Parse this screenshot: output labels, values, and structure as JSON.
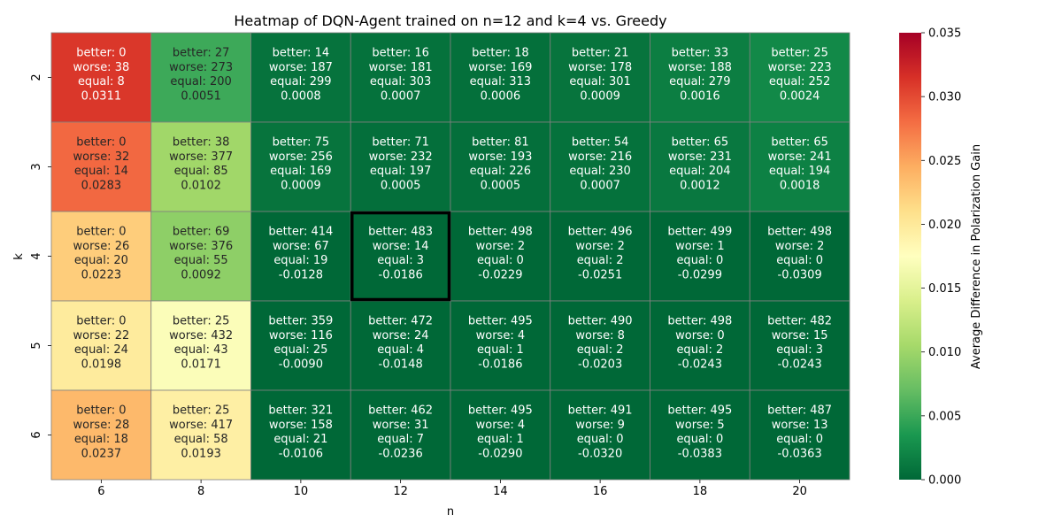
{
  "chart_data": {
    "type": "heatmap",
    "title": "Heatmap of DQN-Agent trained on n=12 and k=4 vs. Greedy",
    "xlabel": "n",
    "ylabel": "k",
    "x": [
      "6",
      "8",
      "10",
      "12",
      "14",
      "16",
      "18",
      "20"
    ],
    "y": [
      "2",
      "3",
      "4",
      "5",
      "6"
    ],
    "highlighted_cell": {
      "n": "12",
      "k": "4"
    },
    "colorbar": {
      "label": "Average Difference in Polarization Gain",
      "range": [
        0.0,
        0.035
      ],
      "ticks": [
        "0.000",
        "0.005",
        "0.010",
        "0.015",
        "0.020",
        "0.025",
        "0.030",
        "0.035"
      ],
      "colormap": "RdYlGn_r"
    },
    "cells": [
      [
        {
          "better": 0,
          "worse": 38,
          "equal": 8,
          "value": "0.0311"
        },
        {
          "better": 27,
          "worse": 273,
          "equal": 200,
          "value": "0.0051"
        },
        {
          "better": 14,
          "worse": 187,
          "equal": 299,
          "value": "0.0008"
        },
        {
          "better": 16,
          "worse": 181,
          "equal": 303,
          "value": "0.0007"
        },
        {
          "better": 18,
          "worse": 169,
          "equal": 313,
          "value": "0.0006"
        },
        {
          "better": 21,
          "worse": 178,
          "equal": 301,
          "value": "0.0009"
        },
        {
          "better": 33,
          "worse": 188,
          "equal": 279,
          "value": "0.0016"
        },
        {
          "better": 25,
          "worse": 223,
          "equal": 252,
          "value": "0.0024"
        }
      ],
      [
        {
          "better": 0,
          "worse": 32,
          "equal": 14,
          "value": "0.0283"
        },
        {
          "better": 38,
          "worse": 377,
          "equal": 85,
          "value": "0.0102"
        },
        {
          "better": 75,
          "worse": 256,
          "equal": 169,
          "value": "0.0009"
        },
        {
          "better": 71,
          "worse": 232,
          "equal": 197,
          "value": "0.0005"
        },
        {
          "better": 81,
          "worse": 193,
          "equal": 226,
          "value": "0.0005"
        },
        {
          "better": 54,
          "worse": 216,
          "equal": 230,
          "value": "0.0007"
        },
        {
          "better": 65,
          "worse": 231,
          "equal": 204,
          "value": "0.0012"
        },
        {
          "better": 65,
          "worse": 241,
          "equal": 194,
          "value": "0.0018"
        }
      ],
      [
        {
          "better": 0,
          "worse": 26,
          "equal": 20,
          "value": "0.0223"
        },
        {
          "better": 69,
          "worse": 376,
          "equal": 55,
          "value": "0.0092"
        },
        {
          "better": 414,
          "worse": 67,
          "equal": 19,
          "value": "-0.0128"
        },
        {
          "better": 483,
          "worse": 14,
          "equal": 3,
          "value": "-0.0186"
        },
        {
          "better": 498,
          "worse": 2,
          "equal": 0,
          "value": "-0.0229"
        },
        {
          "better": 496,
          "worse": 2,
          "equal": 2,
          "value": "-0.0251"
        },
        {
          "better": 499,
          "worse": 1,
          "equal": 0,
          "value": "-0.0299"
        },
        {
          "better": 498,
          "worse": 2,
          "equal": 0,
          "value": "-0.0309"
        }
      ],
      [
        {
          "better": 0,
          "worse": 22,
          "equal": 24,
          "value": "0.0198"
        },
        {
          "better": 25,
          "worse": 432,
          "equal": 43,
          "value": "0.0171"
        },
        {
          "better": 359,
          "worse": 116,
          "equal": 25,
          "value": "-0.0090"
        },
        {
          "better": 472,
          "worse": 24,
          "equal": 4,
          "value": "-0.0148"
        },
        {
          "better": 495,
          "worse": 4,
          "equal": 1,
          "value": "-0.0186"
        },
        {
          "better": 490,
          "worse": 8,
          "equal": 2,
          "value": "-0.0203"
        },
        {
          "better": 498,
          "worse": 0,
          "equal": 2,
          "value": "-0.0243"
        },
        {
          "better": 482,
          "worse": 15,
          "equal": 3,
          "value": "-0.0243"
        }
      ],
      [
        {
          "better": 0,
          "worse": 28,
          "equal": 18,
          "value": "0.0237"
        },
        {
          "better": 25,
          "worse": 417,
          "equal": 58,
          "value": "0.0193"
        },
        {
          "better": 321,
          "worse": 158,
          "equal": 21,
          "value": "-0.0106"
        },
        {
          "better": 462,
          "worse": 31,
          "equal": 7,
          "value": "-0.0236"
        },
        {
          "better": 495,
          "worse": 4,
          "equal": 1,
          "value": "-0.0290"
        },
        {
          "better": 491,
          "worse": 9,
          "equal": 0,
          "value": "-0.0320"
        },
        {
          "better": 495,
          "worse": 5,
          "equal": 0,
          "value": "-0.0383"
        },
        {
          "better": 487,
          "worse": 13,
          "equal": 0,
          "value": "-0.0363"
        }
      ]
    ]
  }
}
